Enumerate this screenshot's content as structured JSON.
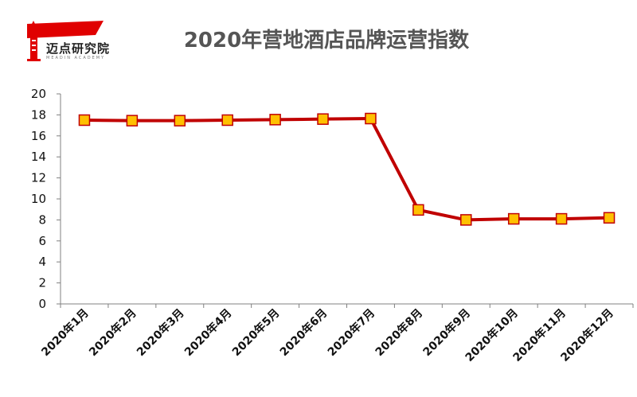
{
  "brand": {
    "name": "迈点研究院",
    "tagline": "MEADIN ACADEMY",
    "brand_color": "#e00000"
  },
  "chart_data": {
    "type": "line",
    "title": "2020年营地酒店品牌运营指数",
    "categories": [
      "2020年1月",
      "2020年2月",
      "2020年3月",
      "2020年4月",
      "2020年5月",
      "2020年6月",
      "2020年7月",
      "2020年8月",
      "2020年9月",
      "2020年10月",
      "2020年11月",
      "2020年12月"
    ],
    "series": [
      {
        "values": [
          17.5,
          17.45,
          17.45,
          17.5,
          17.55,
          17.6,
          17.65,
          8.95,
          8.0,
          8.1,
          8.1,
          8.2
        ],
        "line_color": "#c00000",
        "marker_fill": "#ffc000",
        "marker_stroke": "#c00000"
      }
    ],
    "ylim": [
      0,
      20
    ],
    "yticks": [
      0,
      2,
      4,
      6,
      8,
      10,
      12,
      14,
      16,
      18,
      20
    ],
    "grid": false,
    "legend": "none"
  }
}
